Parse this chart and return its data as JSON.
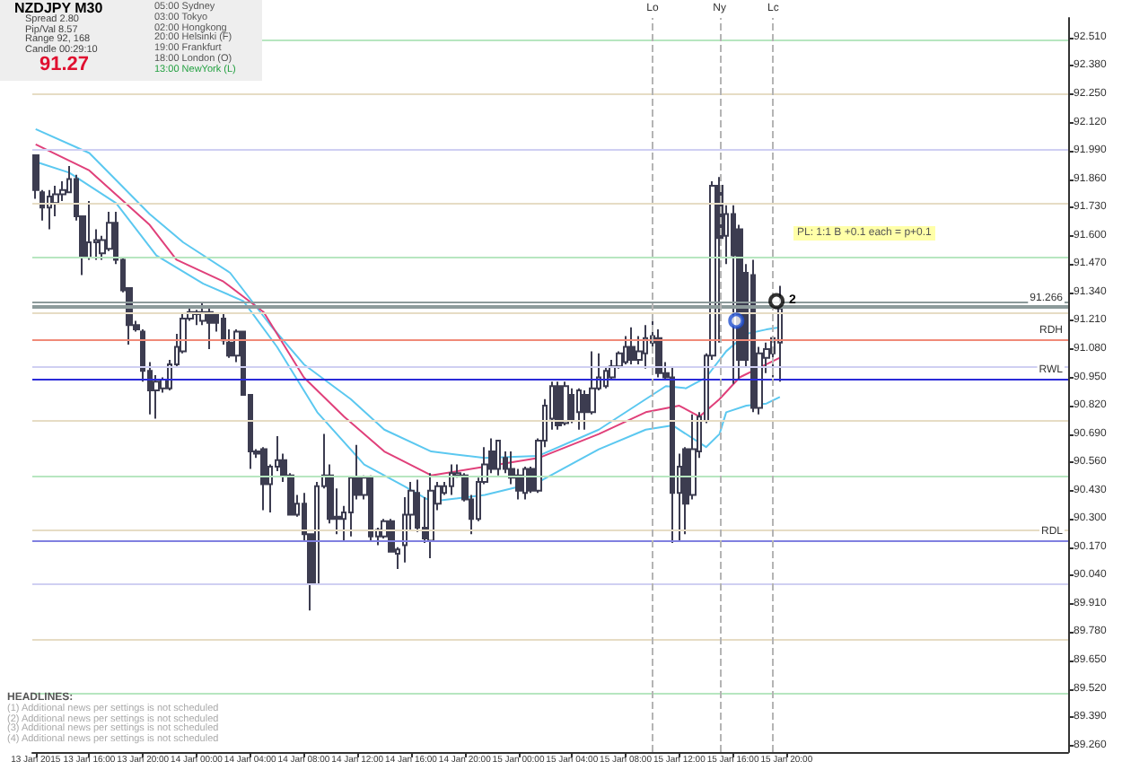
{
  "chart_data": {
    "type": "candlestick",
    "xlim": [
      "2015-01-13T11:45",
      "2015-01-16T17:00"
    ],
    "xticks": [
      {
        "value": "2015-01-13T12:00",
        "label": "13 Jan 2015"
      },
      {
        "value": "2015-01-13T16:00",
        "label": "13 Jan 16:00"
      },
      {
        "value": "2015-01-13T20:00",
        "label": "13 Jan 20:00"
      },
      {
        "value": "2015-01-14T00:00",
        "label": "14 Jan 00:00"
      },
      {
        "value": "2015-01-14T04:00",
        "label": "14 Jan 04:00"
      },
      {
        "value": "2015-01-14T08:00",
        "label": "14 Jan 08:00"
      },
      {
        "value": "2015-01-14T12:00",
        "label": "14 Jan 12:00"
      },
      {
        "value": "2015-01-14T16:00",
        "label": "14 Jan 16:00"
      },
      {
        "value": "2015-01-14T20:00",
        "label": "14 Jan 20:00"
      },
      {
        "value": "2015-01-15T00:00",
        "label": "15 Jan 00:00"
      },
      {
        "value": "2015-01-15T04:00",
        "label": "15 Jan 04:00"
      },
      {
        "value": "2015-01-15T08:00",
        "label": "15 Jan 08:00"
      },
      {
        "value": "2015-01-15T12:00",
        "label": "15 Jan 12:00"
      },
      {
        "value": "2015-01-15T16:00",
        "label": "15 Jan 16:00"
      },
      {
        "value": "2015-01-15T20:00",
        "label": "15 Jan 20:00"
      }
    ],
    "ylim": [
      89.23,
      92.6
    ],
    "yticks": [
      {
        "value": 92.51,
        "label": "92.510"
      },
      {
        "value": 92.38,
        "label": "92.380"
      },
      {
        "value": 92.25,
        "label": "92.250"
      },
      {
        "value": 92.12,
        "label": "92.120"
      },
      {
        "value": 91.99,
        "label": "91.990"
      },
      {
        "value": 91.86,
        "label": "91.860"
      },
      {
        "value": 91.73,
        "label": "91.730"
      },
      {
        "value": 91.6,
        "label": "91.600"
      },
      {
        "value": 91.47,
        "label": "91.470"
      },
      {
        "value": 91.34,
        "label": "91.340"
      },
      {
        "value": 91.21,
        "label": "91.210"
      },
      {
        "value": 91.08,
        "label": "91.080"
      },
      {
        "value": 90.95,
        "label": "90.950"
      },
      {
        "value": 90.82,
        "label": "90.820"
      },
      {
        "value": 90.69,
        "label": "90.690"
      },
      {
        "value": 90.56,
        "label": "90.560"
      },
      {
        "value": 90.43,
        "label": "90.430"
      },
      {
        "value": 90.3,
        "label": "90.300"
      },
      {
        "value": 90.17,
        "label": "90.170"
      },
      {
        "value": 90.04,
        "label": "90.040"
      },
      {
        "value": 89.91,
        "label": "89.910"
      },
      {
        "value": 89.78,
        "label": "89.780"
      },
      {
        "value": 89.65,
        "label": "89.650"
      },
      {
        "value": 89.52,
        "label": "89.520"
      },
      {
        "value": 89.39,
        "label": "89.390"
      },
      {
        "value": 89.26,
        "label": "89.260"
      }
    ],
    "series": [
      {
        "type": "candlestick",
        "color": "#3c3c50",
        "x": [
          "2015-01-13T12:00",
          "2015-01-13T12:30",
          "2015-01-13T13:00",
          "2015-01-13T13:30",
          "2015-01-13T14:00",
          "2015-01-13T14:30",
          "2015-01-13T15:00",
          "2015-01-13T15:30",
          "2015-01-13T16:00",
          "2015-01-13T16:30",
          "2015-01-13T17:00",
          "2015-01-13T17:30",
          "2015-01-13T18:00",
          "2015-01-13T18:30",
          "2015-01-13T19:00",
          "2015-01-13T19:30",
          "2015-01-13T20:00",
          "2015-01-13T20:30",
          "2015-01-13T21:00",
          "2015-01-13T21:30",
          "2015-01-13T22:00",
          "2015-01-13T22:30",
          "2015-01-13T23:00",
          "2015-01-13T23:30",
          "2015-01-14T00:00",
          "2015-01-14T00:30",
          "2015-01-14T01:00",
          "2015-01-14T01:30",
          "2015-01-14T02:00",
          "2015-01-14T02:30",
          "2015-01-14T03:00",
          "2015-01-14T03:30",
          "2015-01-14T04:00",
          "2015-01-14T04:30",
          "2015-01-14T05:00",
          "2015-01-14T05:30",
          "2015-01-14T06:00",
          "2015-01-14T06:30",
          "2015-01-14T07:00",
          "2015-01-14T07:30",
          "2015-01-14T08:00",
          "2015-01-14T08:30",
          "2015-01-14T09:00",
          "2015-01-14T09:30",
          "2015-01-14T10:00",
          "2015-01-14T10:30",
          "2015-01-14T11:00",
          "2015-01-14T11:30",
          "2015-01-14T12:00",
          "2015-01-14T12:30",
          "2015-01-14T13:00",
          "2015-01-14T13:30",
          "2015-01-14T14:00",
          "2015-01-14T14:30",
          "2015-01-14T15:00",
          "2015-01-14T15:30",
          "2015-01-14T16:00",
          "2015-01-14T16:30",
          "2015-01-14T17:00",
          "2015-01-14T17:30",
          "2015-01-14T18:00",
          "2015-01-14T18:30",
          "2015-01-14T19:00",
          "2015-01-14T19:30",
          "2015-01-14T20:00",
          "2015-01-14T20:30",
          "2015-01-14T21:00",
          "2015-01-14T21:30",
          "2015-01-14T22:00",
          "2015-01-14T22:30",
          "2015-01-14T23:00",
          "2015-01-14T23:30",
          "2015-01-15T00:00",
          "2015-01-15T00:30",
          "2015-01-15T01:00",
          "2015-01-15T01:30",
          "2015-01-15T02:00",
          "2015-01-15T02:30",
          "2015-01-15T03:00",
          "2015-01-15T03:30",
          "2015-01-15T04:00",
          "2015-01-15T04:30",
          "2015-01-15T05:00",
          "2015-01-15T05:30",
          "2015-01-15T06:00",
          "2015-01-15T06:30",
          "2015-01-15T07:00",
          "2015-01-15T07:30",
          "2015-01-15T08:00",
          "2015-01-15T08:30",
          "2015-01-15T09:00",
          "2015-01-15T09:30",
          "2015-01-15T10:00",
          "2015-01-15T10:30",
          "2015-01-15T11:00",
          "2015-01-15T11:30",
          "2015-01-15T12:00",
          "2015-01-15T12:30",
          "2015-01-15T13:00",
          "2015-01-15T13:30",
          "2015-01-15T14:00",
          "2015-01-15T14:30",
          "2015-01-15T15:00",
          "2015-01-15T15:30",
          "2015-01-15T16:00",
          "2015-01-15T16:30",
          "2015-01-15T17:00",
          "2015-01-15T17:30",
          "2015-01-15T18:00",
          "2015-01-15T18:30",
          "2015-01-15T19:00",
          "2015-01-15T19:30"
        ],
        "ohlc": [
          [
            91.97,
            91.97,
            91.77,
            91.81
          ],
          [
            91.8,
            91.81,
            91.67,
            91.73
          ],
          [
            91.73,
            91.81,
            91.63,
            91.78
          ],
          [
            91.75,
            91.83,
            91.69,
            91.79
          ],
          [
            91.79,
            91.85,
            91.76,
            91.81
          ],
          [
            91.8,
            91.92,
            91.8,
            91.86
          ],
          [
            91.86,
            91.88,
            91.67,
            91.69
          ],
          [
            91.69,
            91.69,
            91.42,
            91.5
          ],
          [
            91.5,
            91.76,
            91.49,
            91.57
          ],
          [
            91.57,
            91.63,
            91.49,
            91.58
          ],
          [
            91.52,
            91.6,
            91.49,
            91.58
          ],
          [
            91.54,
            91.71,
            91.53,
            91.66
          ],
          [
            91.66,
            91.71,
            91.47,
            91.49
          ],
          [
            91.49,
            91.5,
            91.34,
            91.35
          ],
          [
            91.36,
            91.36,
            91.1,
            91.19
          ],
          [
            91.19,
            91.21,
            91.16,
            91.17
          ],
          [
            91.16,
            91.17,
            90.93,
            90.98
          ],
          [
            90.98,
            91.02,
            90.78,
            90.89
          ],
          [
            90.89,
            90.96,
            90.76,
            90.93
          ],
          [
            90.9,
            90.95,
            90.88,
            90.94
          ],
          [
            90.9,
            91.03,
            90.89,
            91.01
          ],
          [
            91.01,
            91.15,
            91.0,
            91.09
          ],
          [
            91.07,
            91.24,
            91.06,
            91.22
          ],
          [
            91.22,
            91.28,
            91.21,
            91.25
          ],
          [
            91.25,
            91.26,
            91.19,
            91.24
          ],
          [
            91.21,
            91.29,
            91.19,
            91.25
          ],
          [
            91.25,
            91.27,
            91.08,
            91.2
          ],
          [
            91.24,
            91.24,
            91.16,
            91.2
          ],
          [
            91.22,
            91.24,
            91.1,
            91.12
          ],
          [
            91.11,
            91.17,
            91.04,
            91.05
          ],
          [
            91.05,
            91.17,
            91.02,
            91.16
          ],
          [
            91.16,
            91.16,
            90.87,
            90.87
          ],
          [
            90.87,
            90.87,
            90.53,
            90.61
          ],
          [
            90.61,
            90.62,
            90.58,
            90.6
          ],
          [
            90.62,
            90.63,
            90.34,
            90.46
          ],
          [
            90.46,
            90.55,
            90.33,
            90.54
          ],
          [
            90.54,
            90.68,
            90.52,
            90.57
          ],
          [
            90.57,
            90.6,
            90.47,
            90.5
          ],
          [
            90.5,
            90.51,
            90.32,
            90.32
          ],
          [
            90.32,
            90.41,
            90.31,
            90.37
          ],
          [
            90.37,
            90.42,
            90.2,
            90.23
          ],
          [
            90.23,
            90.23,
            89.88,
            90.0
          ],
          [
            90.0,
            90.47,
            90.0,
            90.45
          ],
          [
            90.45,
            90.69,
            90.44,
            90.5
          ],
          [
            90.5,
            90.55,
            90.28,
            90.3
          ],
          [
            90.31,
            90.44,
            90.23,
            90.3
          ],
          [
            90.3,
            90.36,
            90.2,
            90.33
          ],
          [
            90.33,
            90.49,
            90.22,
            90.49
          ],
          [
            90.49,
            90.64,
            90.39,
            90.41
          ],
          [
            90.41,
            90.5,
            90.39,
            90.49
          ],
          [
            90.49,
            90.5,
            90.2,
            90.22
          ],
          [
            90.22,
            90.26,
            90.18,
            90.25
          ],
          [
            90.22,
            90.3,
            90.21,
            90.29
          ],
          [
            90.29,
            90.3,
            90.15,
            90.15
          ],
          [
            90.14,
            90.17,
            90.07,
            90.16
          ],
          [
            90.18,
            90.4,
            90.1,
            90.32
          ],
          [
            90.32,
            90.47,
            90.25,
            90.43
          ],
          [
            90.42,
            90.48,
            90.24,
            90.26
          ],
          [
            90.26,
            90.4,
            90.19,
            90.21
          ],
          [
            90.2,
            90.51,
            90.12,
            90.43
          ],
          [
            90.37,
            90.47,
            90.34,
            90.45
          ],
          [
            90.42,
            90.47,
            90.41,
            90.45
          ],
          [
            90.45,
            90.55,
            90.41,
            90.51
          ],
          [
            90.5,
            90.55,
            90.49,
            90.51
          ],
          [
            90.5,
            90.51,
            90.38,
            90.39
          ],
          [
            90.39,
            90.41,
            90.23,
            90.3
          ],
          [
            90.3,
            90.49,
            90.29,
            90.47
          ],
          [
            90.47,
            90.63,
            90.46,
            90.55
          ],
          [
            90.61,
            90.67,
            90.51,
            90.53
          ],
          [
            90.53,
            90.66,
            90.5,
            90.66
          ],
          [
            90.58,
            90.61,
            90.51,
            90.53
          ],
          [
            90.53,
            90.61,
            90.46,
            90.49
          ],
          [
            90.5,
            90.53,
            90.39,
            90.43
          ],
          [
            90.42,
            90.54,
            90.39,
            90.53
          ],
          [
            90.53,
            90.54,
            90.42,
            90.43
          ],
          [
            90.43,
            90.67,
            90.42,
            90.66
          ],
          [
            90.66,
            90.85,
            90.63,
            90.82
          ],
          [
            90.76,
            90.93,
            90.71,
            90.91
          ],
          [
            90.91,
            90.93,
            90.71,
            90.73
          ],
          [
            90.74,
            90.93,
            90.73,
            90.91
          ],
          [
            90.87,
            90.9,
            90.74,
            90.75
          ],
          [
            90.79,
            90.9,
            90.71,
            90.89
          ],
          [
            90.87,
            90.89,
            90.71,
            90.79
          ],
          [
            90.79,
            91.07,
            90.78,
            90.9
          ],
          [
            90.9,
            91.06,
            90.89,
            90.95
          ],
          [
            90.91,
            91.0,
            90.9,
            90.98
          ],
          [
            90.95,
            91.03,
            90.94,
            91.0
          ],
          [
            91.0,
            91.07,
            90.99,
            91.06
          ],
          [
            91.02,
            91.14,
            91.01,
            91.09
          ],
          [
            91.09,
            91.18,
            91.01,
            91.03
          ],
          [
            91.03,
            91.14,
            91.01,
            91.07
          ],
          [
            91.06,
            91.19,
            90.99,
            91.13
          ],
          [
            91.14,
            91.21,
            91.09,
            91.11
          ],
          [
            91.13,
            91.17,
            90.95,
            90.97
          ],
          [
            90.97,
            91.02,
            90.94,
            90.95
          ],
          [
            90.95,
            91.0,
            90.19,
            90.42
          ],
          [
            90.42,
            90.6,
            90.2,
            90.54
          ],
          [
            90.62,
            90.63,
            90.23,
            90.37
          ],
          [
            90.41,
            90.78,
            90.39,
            90.62
          ],
          [
            90.61,
            90.79,
            90.58,
            90.77
          ],
          [
            90.75,
            91.06,
            90.74,
            91.05
          ],
          [
            91.05,
            91.85,
            91.03,
            91.83
          ],
          [
            91.83,
            91.87,
            91.11,
            91.59
          ],
          [
            91.6,
            91.74,
            91.47,
            91.7
          ],
          [
            91.7,
            91.74,
            90.92,
            91.51
          ],
          [
            91.63,
            91.65,
            90.94,
            91.03
          ],
          [
            91.43,
            91.47,
            91.0,
            91.03
          ],
          [
            91.42,
            91.49,
            90.79,
            90.81
          ],
          [
            90.81,
            91.09,
            90.78,
            91.06
          ],
          [
            91.04,
            91.11,
            90.97,
            91.08
          ],
          [
            91.06,
            91.14,
            90.95,
            91.13
          ],
          [
            91.11,
            91.37,
            90.93,
            91.266
          ]
        ]
      },
      {
        "type": "line",
        "color": "#5bc8f0",
        "marker": "none",
        "x": [
          "2015-01-13T12:00",
          "2015-01-13T16:00",
          "2015-01-13T20:30",
          "2015-01-13T23:00",
          "2015-01-14T02:30",
          "2015-01-14T05:30",
          "2015-01-14T08:00",
          "2015-01-14T11:30",
          "2015-01-14T14:00",
          "2015-01-14T17:30",
          "2015-01-14T21:30",
          "2015-01-15T01:30",
          "2015-01-15T06:00",
          "2015-01-15T09:30",
          "2015-01-15T11:00",
          "2015-01-15T12:30",
          "2015-01-15T14:00",
          "2015-01-15T15:30",
          "2015-01-15T17:00",
          "2015-01-15T18:30",
          "2015-01-15T19:30"
        ],
        "values": [
          92.09,
          91.98,
          91.7,
          91.57,
          91.43,
          91.19,
          91.01,
          90.85,
          90.71,
          90.61,
          90.58,
          90.59,
          90.71,
          90.85,
          90.91,
          90.9,
          90.95,
          91.07,
          91.15,
          91.17,
          91.18
        ]
      },
      {
        "type": "line",
        "color": "#e0407a",
        "marker": "none",
        "x": [
          "2015-01-13T12:00",
          "2015-01-13T16:00",
          "2015-01-13T20:30",
          "2015-01-13T22:30",
          "2015-01-14T02:00",
          "2015-01-14T05:00",
          "2015-01-14T08:00",
          "2015-01-14T11:00",
          "2015-01-14T14:00",
          "2015-01-14T17:30",
          "2015-01-14T21:30",
          "2015-01-15T01:30",
          "2015-01-15T06:00",
          "2015-01-15T09:30",
          "2015-01-15T12:00",
          "2015-01-15T13:30",
          "2015-01-15T15:00",
          "2015-01-15T16:30",
          "2015-01-15T18:30",
          "2015-01-15T19:30"
        ],
        "values": [
          92.02,
          91.9,
          91.65,
          91.49,
          91.39,
          91.25,
          90.95,
          90.77,
          90.61,
          90.5,
          90.54,
          90.58,
          90.69,
          90.79,
          90.82,
          90.77,
          90.85,
          90.95,
          91.01,
          91.04
        ]
      },
      {
        "type": "line",
        "color": "#5bc8f0",
        "marker": "none",
        "x": [
          "2015-01-13T12:00",
          "2015-01-13T14:30",
          "2015-01-13T18:00",
          "2015-01-13T21:00",
          "2015-01-14T00:30",
          "2015-01-14T03:30",
          "2015-01-14T06:00",
          "2015-01-14T09:00",
          "2015-01-14T12:30",
          "2015-01-14T15:30",
          "2015-01-14T17:30",
          "2015-01-14T21:30",
          "2015-01-15T01:30",
          "2015-01-15T06:00",
          "2015-01-15T09:30",
          "2015-01-15T11:30",
          "2015-01-15T14:00",
          "2015-01-15T15:00",
          "2015-01-15T15:30",
          "2015-01-15T17:00",
          "2015-01-15T18:30",
          "2015-01-15T19:30"
        ],
        "values": [
          91.94,
          91.89,
          91.75,
          91.51,
          91.38,
          91.3,
          91.09,
          90.79,
          90.55,
          90.45,
          90.38,
          90.41,
          90.47,
          90.62,
          90.71,
          90.73,
          90.63,
          90.69,
          90.79,
          90.82,
          90.83,
          90.86
        ]
      },
      {
        "type": "scatter",
        "marker": "circle",
        "colors": [
          "#1f4fd0",
          "#000000"
        ],
        "x": [
          "2015-01-15T16:15",
          "2015-01-15T19:15"
        ],
        "values": [
          91.21,
          91.3
        ]
      }
    ],
    "ref_lines": [
      {
        "axis": "y",
        "value": 92.5,
        "color": "#b7e6c0"
      },
      {
        "axis": "y",
        "value": 92.25,
        "color": "#e6dcc4"
      },
      {
        "axis": "y",
        "value": 92.0,
        "color": "#cfcff2"
      },
      {
        "axis": "y",
        "value": 91.75,
        "color": "#e6dcc4"
      },
      {
        "axis": "y",
        "value": 91.5,
        "color": "#b7e6c0"
      },
      {
        "axis": "y",
        "value": 91.25,
        "color": "#e6dcc4"
      },
      {
        "axis": "y",
        "value": 91.0,
        "color": "#cfcff2"
      },
      {
        "axis": "y",
        "value": 90.75,
        "color": "#e6dcc4"
      },
      {
        "axis": "y",
        "value": 90.5,
        "color": "#b7e6c0"
      },
      {
        "axis": "y",
        "value": 90.25,
        "color": "#e6dcc4"
      },
      {
        "axis": "y",
        "value": 90.0,
        "color": "#cfcff2"
      },
      {
        "axis": "y",
        "value": 89.75,
        "color": "#e6dcc4"
      },
      {
        "axis": "y",
        "value": 89.5,
        "color": "#b7e6c0"
      },
      {
        "axis": "y",
        "value": 91.3,
        "color": "#8c9a9a"
      },
      {
        "axis": "y",
        "value": 91.28,
        "color": "#8c9a9a"
      },
      {
        "axis": "y",
        "value": 91.266,
        "label": "91.266",
        "color": "#8c9a9a"
      },
      {
        "axis": "y",
        "value": 91.12,
        "label": "RDH",
        "color": "#f08a78"
      },
      {
        "axis": "y",
        "value": 90.94,
        "label": "RWL",
        "color": "#2b2bd9"
      },
      {
        "axis": "y",
        "value": 90.2,
        "label": "RDL",
        "color": "#8080e0"
      },
      {
        "axis": "x",
        "value": "2015-01-15T10:00",
        "label": "Lo",
        "color": "#b4b4b4",
        "line_style": "dashed"
      },
      {
        "axis": "x",
        "value": "2015-01-15T15:00",
        "label": "Ny",
        "color": "#b4b4b4",
        "line_style": "dashed"
      },
      {
        "axis": "x",
        "value": "2015-01-15T19:00",
        "label": "Lc",
        "color": "#b4b4b4",
        "line_style": "dashed"
      }
    ],
    "annotations": [
      "NZDJPY  M30",
      "Spread  2.80",
      "Pip/Val  8.57",
      "Range  92, 168",
      "Candle  00:29:10",
      "91.27",
      "05:00  Sydney",
      "03:00  Tokyo",
      "02:00  Hongkong",
      "20:00  Helsinki (F)",
      "19:00  Frankfurt",
      "18:00  London (O)",
      "13:00  NewYork (L)",
      "HEADLINES:",
      "(1) Additional news per settings is not scheduled",
      "(2) Additional news per settings is not scheduled",
      "(3) Additional news per settings is not scheduled",
      "(4) Additional news per settings is not scheduled",
      "PL: 1:1 B +0.1 each = p+0.1",
      {
        "text": "2",
        "x": "2015-01-15T19:15",
        "y": 91.3
      }
    ]
  }
}
